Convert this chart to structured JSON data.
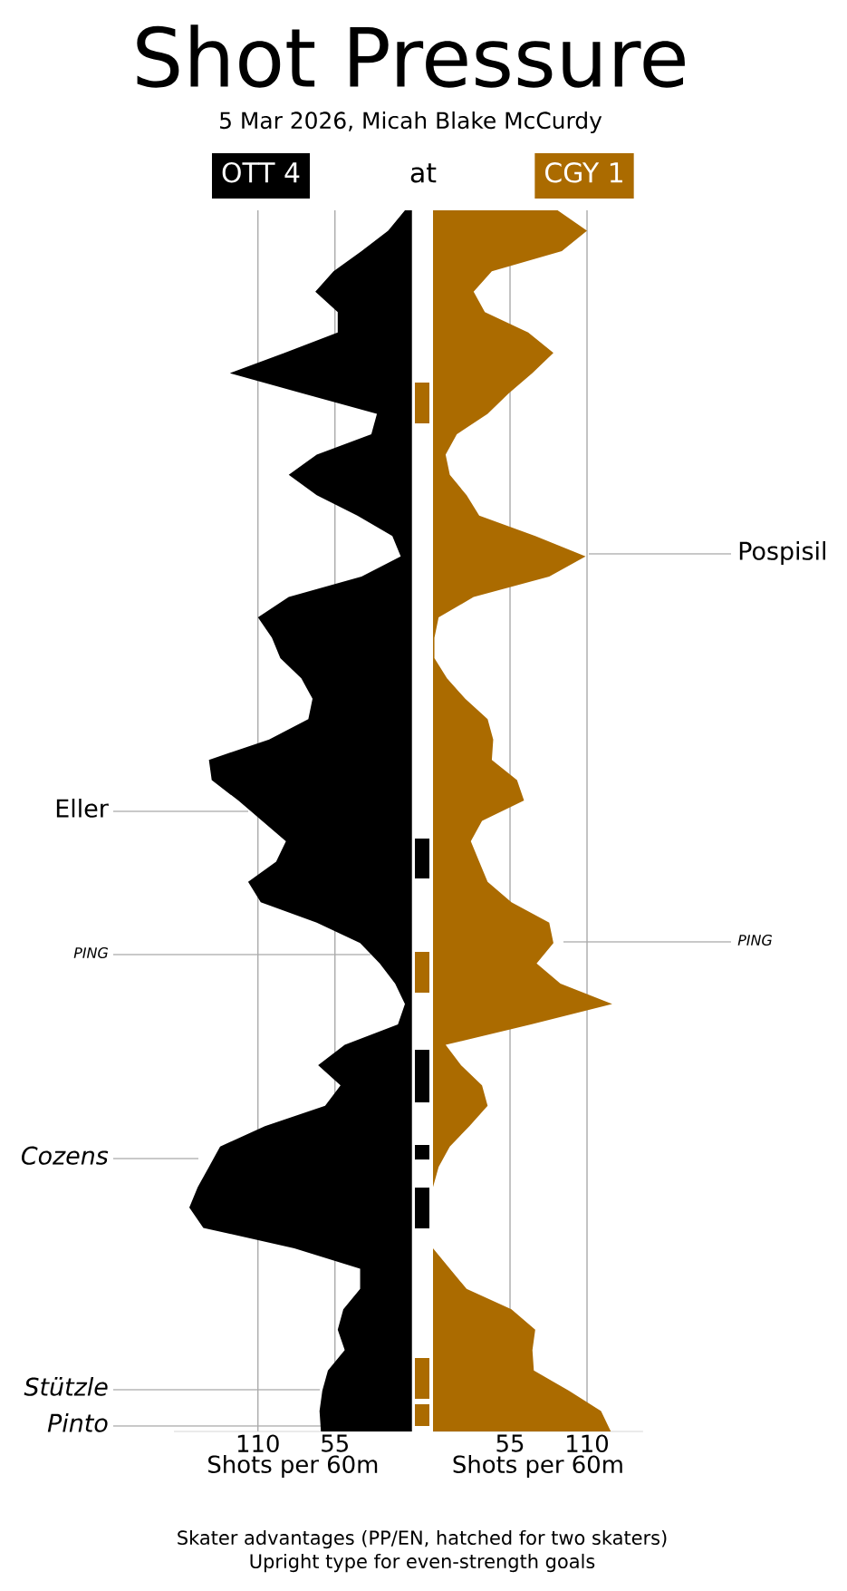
{
  "chart_data": [
    {
      "type": "area",
      "title": "Shot Pressure",
      "subtitle": "5 Mar 2026, Micah Blake McCurdy",
      "orientation": "horizontal",
      "xlabel": "Shots per 60m",
      "xlim": [
        170,
        0
      ],
      "xticks": [
        110,
        55
      ],
      "grid": "x",
      "categories": [
        null,
        null,
        null,
        null,
        null,
        null,
        null,
        null,
        null,
        null,
        null,
        null,
        null,
        null,
        null,
        null,
        null,
        null,
        null,
        null,
        null,
        null,
        null,
        null,
        null,
        null,
        null,
        null,
        null,
        null,
        null,
        null,
        null,
        null,
        null,
        null,
        null,
        null,
        null,
        null,
        null,
        null,
        null,
        null,
        null,
        null,
        null,
        null,
        null,
        null,
        null,
        null,
        null,
        null,
        null,
        null,
        null,
        null,
        null,
        null,
        null
      ],
      "series": [
        {
          "name": "OTT 4",
          "color": "#000000",
          "values": [
            5,
            17,
            36,
            56,
            69,
            53,
            53,
            91,
            130,
            78,
            25,
            29,
            68,
            88,
            68,
            39,
            14,
            8,
            36,
            88,
            110,
            100,
            94,
            79,
            71,
            74,
            102,
            145,
            143,
            124,
            107,
            90,
            97,
            117,
            108,
            68,
            37,
            23,
            12,
            5,
            10,
            48,
            67,
            51,
            62,
            105,
            137,
            145,
            153,
            159,
            149,
            84,
            37,
            37,
            49,
            53,
            48,
            60,
            64,
            66,
            65
          ]
        }
      ],
      "annotations": [
        "at",
        "Eller",
        "*PING*",
        "*Cozens*",
        "*Stützle*",
        "*Pinto*",
        "Skater advantages (PP/EN, hatched for two skaters)",
        "Upright type for even-strength goals"
      ]
    },
    {
      "type": "area",
      "orientation": "horizontal",
      "xlabel": "Shots per 60m",
      "xlim": [
        0,
        150
      ],
      "xticks": [
        55,
        110
      ],
      "grid": "x",
      "categories": [
        null,
        null,
        null,
        null,
        null,
        null,
        null,
        null,
        null,
        null,
        null,
        null,
        null,
        null,
        null,
        null,
        null,
        null,
        null,
        null,
        null,
        null,
        null,
        null,
        null,
        null,
        null,
        null,
        null,
        null,
        null,
        null,
        null,
        null,
        null,
        null,
        null,
        null,
        null,
        null,
        null,
        null,
        null,
        null,
        null,
        null,
        null,
        null,
        null,
        null,
        null,
        null,
        null,
        null,
        null,
        null,
        null,
        null,
        null,
        null,
        null
      ],
      "series": [
        {
          "name": "CGY 1",
          "color": "#ab6b00",
          "values": [
            89,
            110,
            92,
            42,
            29,
            37,
            68,
            86,
            71,
            54,
            39,
            17,
            9,
            12,
            24,
            33,
            73,
            109,
            83,
            29,
            4,
            1,
            1,
            10,
            23,
            39,
            43,
            42,
            60,
            65,
            35,
            27,
            33,
            39,
            56,
            83,
            86,
            74,
            91,
            128,
            70,
            9,
            20,
            35,
            39,
            26,
            12,
            4,
            0,
            0,
            0,
            0,
            12,
            24,
            56,
            73,
            71,
            72,
            97,
            120,
            127
          ]
        }
      ],
      "annotations": [
        "Pospisil",
        "*PING*"
      ]
    }
  ]
}
